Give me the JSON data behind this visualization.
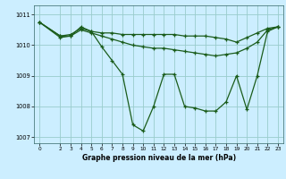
{
  "xlabel": "Graphe pression niveau de la mer (hPa)",
  "background_color": "#cceeff",
  "grid_color": "#99cccc",
  "line_color": "#1a5c1a",
  "xlim": [
    -0.5,
    23.5
  ],
  "ylim": [
    1006.8,
    1011.3
  ],
  "yticks": [
    1007,
    1008,
    1009,
    1010,
    1011
  ],
  "xticks": [
    0,
    2,
    3,
    4,
    5,
    6,
    7,
    8,
    9,
    10,
    11,
    12,
    13,
    14,
    15,
    16,
    17,
    18,
    19,
    20,
    21,
    22,
    23
  ],
  "series": [
    {
      "x": [
        0,
        2,
        3,
        4,
        5,
        6,
        7,
        8,
        9,
        10,
        11,
        12,
        13,
        14,
        15,
        16,
        17,
        18,
        19,
        20,
        21,
        22,
        23
      ],
      "y": [
        1010.75,
        1010.3,
        1010.35,
        1010.55,
        1010.45,
        1010.4,
        1010.4,
        1010.35,
        1010.35,
        1010.35,
        1010.35,
        1010.35,
        1010.35,
        1010.3,
        1010.3,
        1010.3,
        1010.25,
        1010.2,
        1010.1,
        1010.25,
        1010.4,
        1010.55,
        1010.6
      ]
    },
    {
      "x": [
        0,
        2,
        3,
        4,
        5,
        6,
        7,
        8,
        9,
        10,
        11,
        12,
        13,
        14,
        15,
        16,
        17,
        18,
        19,
        20,
        21,
        22,
        23
      ],
      "y": [
        1010.75,
        1010.3,
        1010.3,
        1010.5,
        1010.4,
        1010.3,
        1010.2,
        1010.1,
        1010.0,
        1009.95,
        1009.9,
        1009.9,
        1009.85,
        1009.8,
        1009.75,
        1009.7,
        1009.65,
        1009.7,
        1009.75,
        1009.9,
        1010.1,
        1010.5,
        1010.6
      ]
    },
    {
      "x": [
        0,
        2,
        3,
        4,
        5,
        6,
        7,
        8,
        9,
        10,
        11,
        12,
        13,
        14,
        15,
        16,
        17,
        18,
        19,
        20,
        21,
        22,
        23
      ],
      "y": [
        1010.75,
        1010.25,
        1010.3,
        1010.6,
        1010.45,
        1009.95,
        1009.5,
        1009.05,
        1007.4,
        1007.2,
        1008.0,
        1009.05,
        1009.05,
        1008.0,
        1007.95,
        1007.85,
        1007.85,
        1008.15,
        1009.0,
        1007.9,
        1009.0,
        1010.45,
        1010.6
      ]
    }
  ]
}
